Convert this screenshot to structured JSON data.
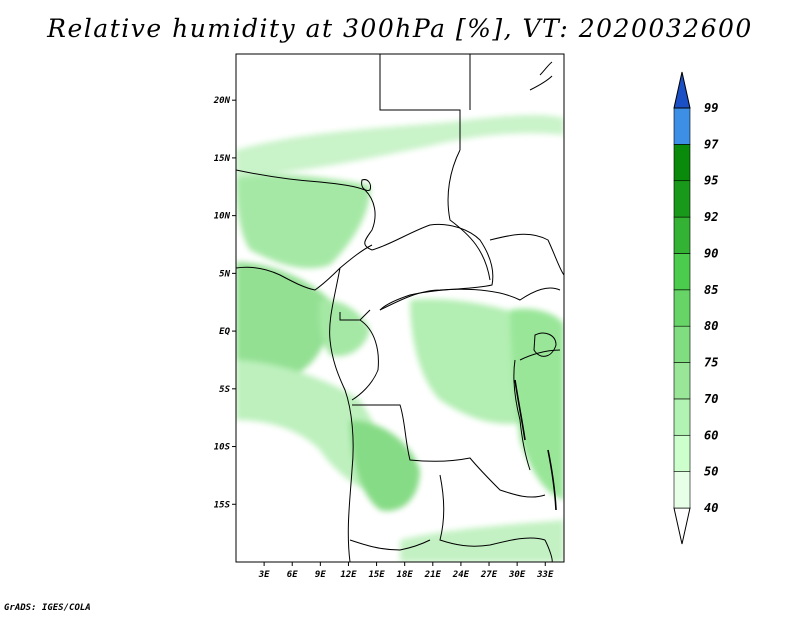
{
  "title": "Relative humidity at 300hPa [%], VT: 2020032600",
  "credit": "GrADS: IGES/COLA",
  "map": {
    "lat_labels": [
      "20N",
      "15N",
      "10N",
      "5N",
      "EQ",
      "5S",
      "10S",
      "15S"
    ],
    "lon_labels": [
      "3E",
      "6E",
      "9E",
      "12E",
      "15E",
      "18E",
      "21E",
      "24E",
      "27E",
      "30E",
      "33E"
    ]
  },
  "colorbar": {
    "labels": [
      "40",
      "50",
      "60",
      "70",
      "75",
      "80",
      "85",
      "90",
      "92",
      "95",
      "97",
      "99"
    ],
    "colors": [
      "#ffffff",
      "#e6ffe6",
      "#ccffcc",
      "#b2f2b2",
      "#99e699",
      "#80dd80",
      "#66d466",
      "#4ccc4c",
      "#33b233",
      "#199919",
      "#0a8a0a",
      "#3d8fe6",
      "#2a6fd6",
      "#1a4fc6"
    ]
  }
}
